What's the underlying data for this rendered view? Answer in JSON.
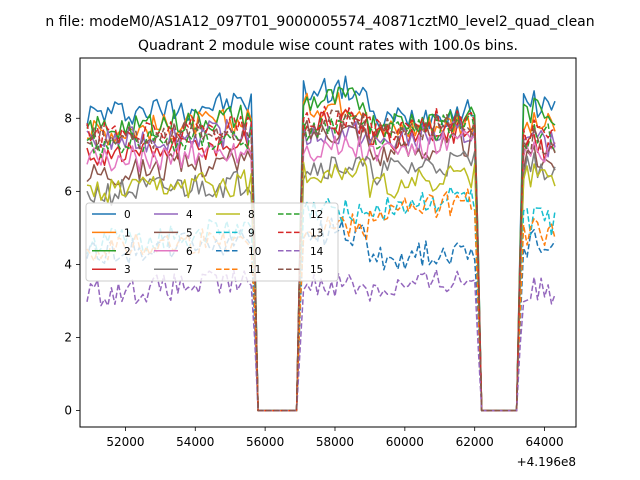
{
  "figure": {
    "suptitle": "n file: modeM0/AS1A12_097T01_9000005574_40871cztM0_level2_quad_clean",
    "title": "Quadrant 2 module wise count rates with 100.0s bins.",
    "x_offset_label": "+4.196e8"
  },
  "chart_data": {
    "type": "line",
    "title": "Quadrant 2 module wise count rates with 100.0s bins.",
    "xlabel": "",
    "ylabel": "",
    "x_offset": 419600000,
    "xlim": [
      50700,
      64900
    ],
    "ylim": [
      -0.45,
      9.65
    ],
    "xticks": [
      52000,
      54000,
      56000,
      58000,
      60000,
      62000,
      64000
    ],
    "xtick_labels": [
      "52000",
      "54000",
      "56000",
      "58000",
      "60000",
      "62000",
      "64000"
    ],
    "yticks": [
      0,
      2,
      4,
      6,
      8
    ],
    "ytick_labels": [
      "0",
      "2",
      "4",
      "6",
      "8"
    ],
    "grid": false,
    "legend_position": "center-left",
    "legend_columns": 4,
    "bin_seconds": 100,
    "x_start": 50900,
    "n_bins": 135,
    "gaps": [
      [
        55700,
        57000
      ],
      [
        62100,
        63300
      ]
    ],
    "series": [
      {
        "name": "0",
        "color": "#1f77b4",
        "dash": "solid",
        "levels": [
          8.1,
          8.7,
          7.9,
          8.3
        ]
      },
      {
        "name": "1",
        "color": "#ff7f0e",
        "dash": "solid",
        "levels": [
          7.6,
          8.3,
          7.6,
          7.7
        ]
      },
      {
        "name": "2",
        "color": "#2ca02c",
        "dash": "solid",
        "levels": [
          7.7,
          8.4,
          7.8,
          8.1
        ]
      },
      {
        "name": "3",
        "color": "#d62728",
        "dash": "solid",
        "levels": [
          7.0,
          7.8,
          7.4,
          7.1
        ]
      },
      {
        "name": "4",
        "color": "#9467bd",
        "dash": "solid",
        "levels": [
          7.3,
          7.5,
          7.3,
          7.2
        ]
      },
      {
        "name": "5",
        "color": "#8c564b",
        "dash": "solid",
        "levels": [
          6.5,
          7.6,
          7.0,
          6.8
        ]
      },
      {
        "name": "6",
        "color": "#e377c2",
        "dash": "solid",
        "levels": [
          6.8,
          7.1,
          7.0,
          6.9
        ]
      },
      {
        "name": "7",
        "color": "#7f7f7f",
        "dash": "solid",
        "levels": [
          5.9,
          6.6,
          6.5,
          6.6
        ]
      },
      {
        "name": "8",
        "color": "#bcbd22",
        "dash": "solid",
        "levels": [
          5.9,
          6.5,
          6.1,
          6.3
        ]
      },
      {
        "name": "9",
        "color": "#17becf",
        "dash": "dashed",
        "levels": [
          4.6,
          5.4,
          5.5,
          5.1
        ]
      },
      {
        "name": "10",
        "color": "#1f77b4",
        "dash": "dashed",
        "levels": [
          4.3,
          4.8,
          4.1,
          4.5
        ]
      },
      {
        "name": "11",
        "color": "#ff7f0e",
        "dash": "dashed",
        "levels": [
          4.4,
          5.0,
          5.4,
          4.8
        ]
      },
      {
        "name": "12",
        "color": "#2ca02c",
        "dash": "dashed",
        "levels": [
          7.2,
          7.7,
          7.5,
          7.4
        ]
      },
      {
        "name": "13",
        "color": "#d62728",
        "dash": "dashed",
        "levels": [
          7.5,
          7.9,
          7.7,
          7.5
        ]
      },
      {
        "name": "14",
        "color": "#9467bd",
        "dash": "dashed",
        "levels": [
          3.2,
          3.4,
          3.3,
          3.2
        ]
      },
      {
        "name": "15",
        "color": "#8c564b",
        "dash": "dashed",
        "levels": [
          7.4,
          7.8,
          7.6,
          7.3
        ]
      }
    ]
  }
}
